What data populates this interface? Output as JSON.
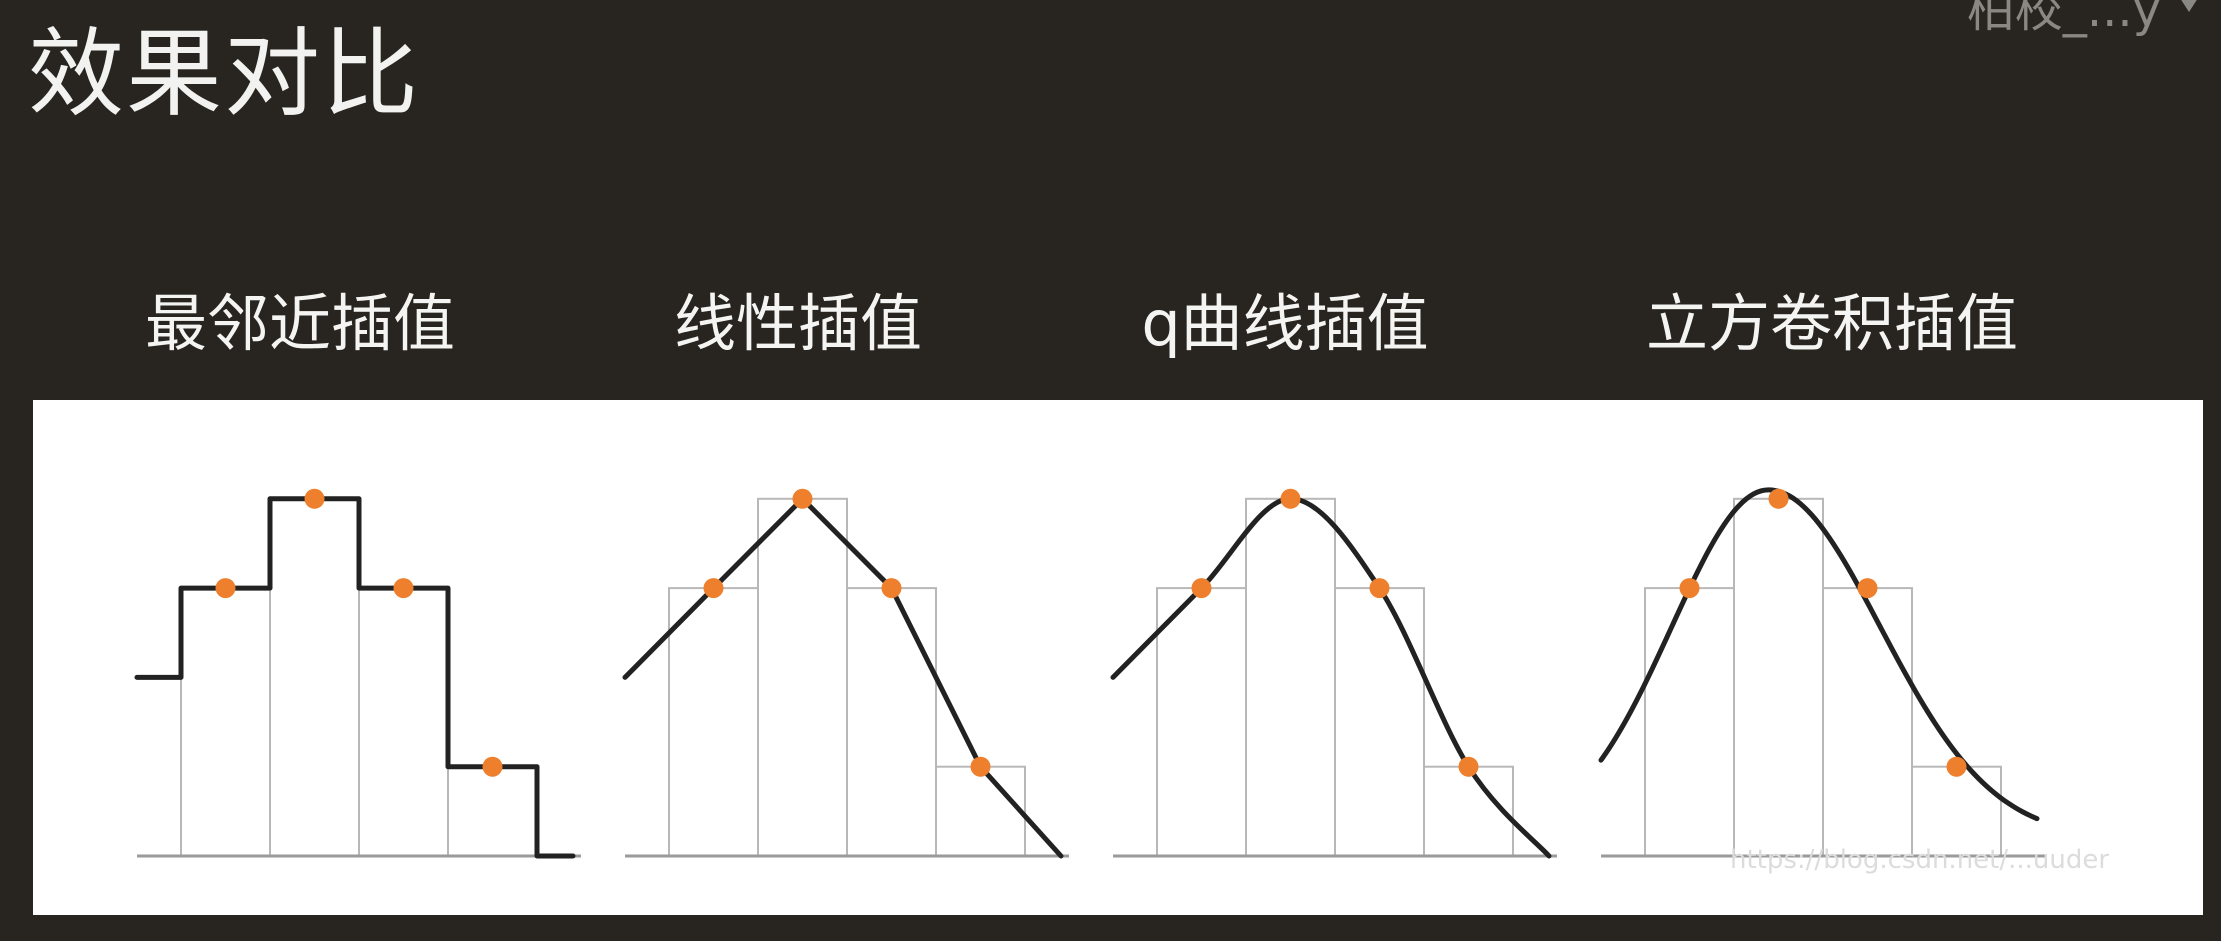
{
  "slide": {
    "title": "效果对比",
    "top_right_overlay": "柏校_...y",
    "watermark": "https://blog.csdn.net/...uuder"
  },
  "panels": [
    {
      "id": "nearest",
      "label": "最邻近插值",
      "curve_type": "step"
    },
    {
      "id": "linear",
      "label": "线性插值",
      "curve_type": "linear"
    },
    {
      "id": "q-curve",
      "label": "q曲线插值",
      "curve_type": "interpolating-spline"
    },
    {
      "id": "cubic",
      "label": "立方卷积插值",
      "curve_type": "smooth-approximating"
    }
  ],
  "sample_values": [
    2,
    3,
    4,
    3,
    1,
    0
  ],
  "colors": {
    "background": "#282520",
    "panel_background": "#ffffff",
    "curve": "#222222",
    "bars": "#b8b8b8",
    "axis": "#9a9a9a",
    "sample_points": "#ee7f2d"
  },
  "icons": {
    "top_right_arrow": "play-arrow-icon"
  }
}
